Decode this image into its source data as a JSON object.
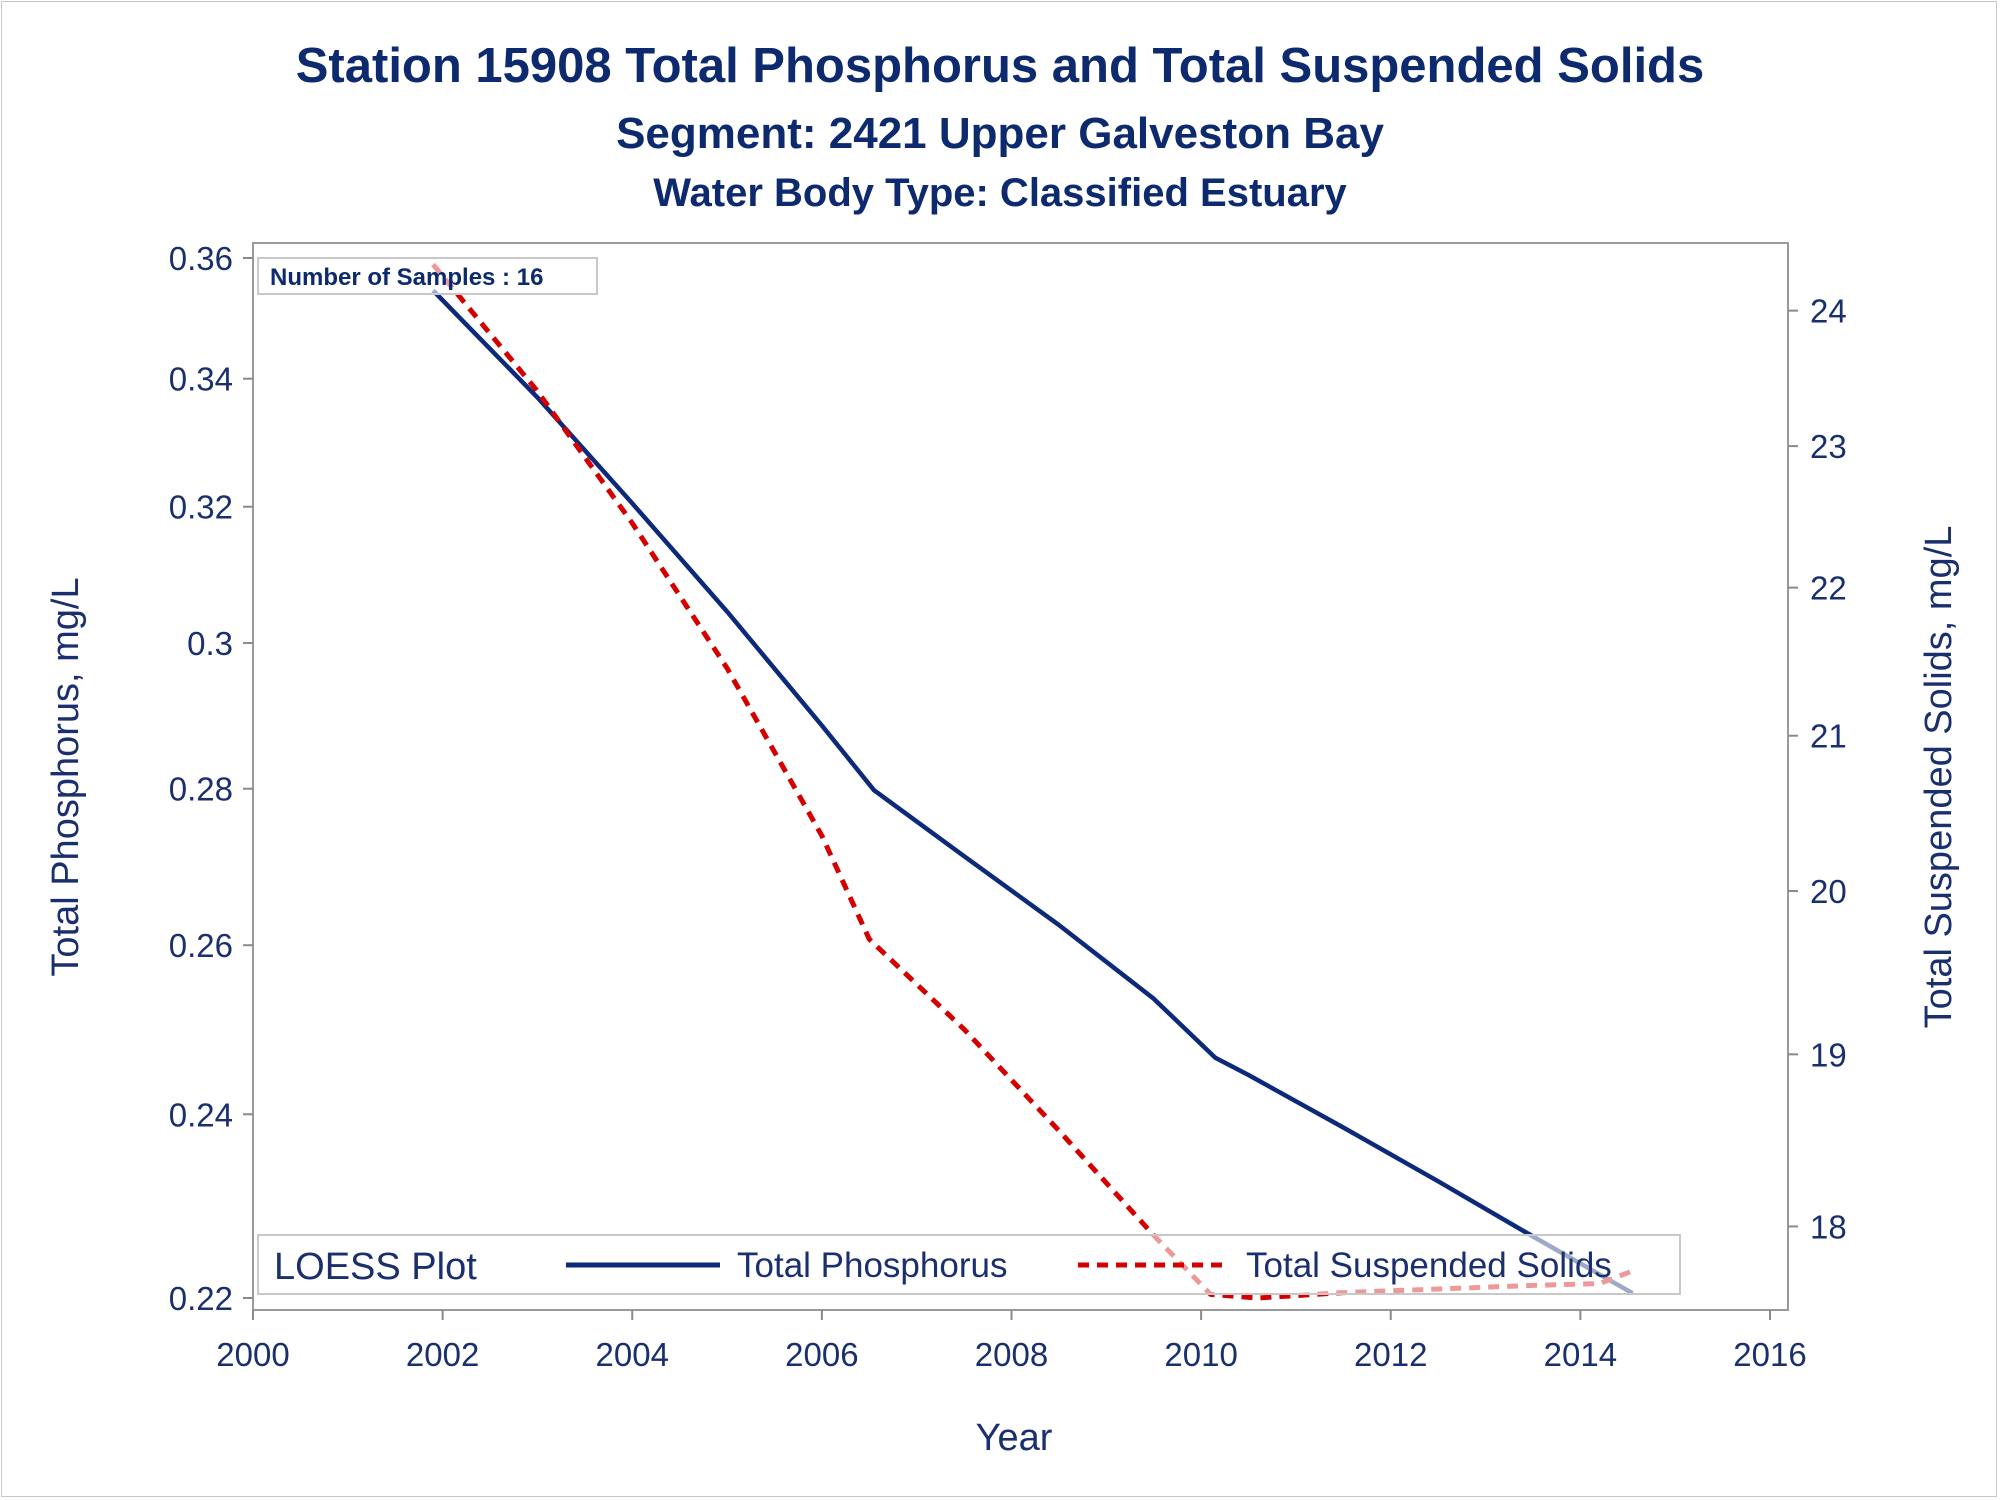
{
  "chart_data": {
    "type": "line",
    "title": "Station 15908  Total Phosphorus and Total Suspended Solids",
    "subtitle": "Segment: 2421  Upper Galveston Bay",
    "subtitle2": "Water Body Type: Classified Estuary",
    "xlabel": "Year",
    "ylabel": "Total Phosphorus, mg/L",
    "y2label": "Total Suspended Solids, mg/L",
    "xlim": [
      2000,
      2016
    ],
    "ylim": [
      0.22,
      0.36
    ],
    "y2lim": [
      17.6,
      24.4
    ],
    "y_scale": "log",
    "y2_scale": "log",
    "x_ticks": [
      "2000",
      "2002",
      "2004",
      "2006",
      "2008",
      "2010",
      "2012",
      "2014",
      "2016"
    ],
    "y_ticks": [
      "0.22",
      "0.24",
      "0.26",
      "0.28",
      "0.3",
      "0.32",
      "0.34",
      "0.36"
    ],
    "y2_ticks": [
      "18",
      "19",
      "20",
      "21",
      "22",
      "23",
      "24"
    ],
    "inset_text": "Number of Samples : 16",
    "legend": {
      "title": "LOESS Plot",
      "position": "bottom-inside",
      "entries": [
        "Total Phosphorus",
        "Total Suspended Solids"
      ]
    },
    "series": [
      {
        "name": "Total Phosphorus",
        "axis": "left",
        "style": "solid",
        "color": "#0d2a7a",
        "x": [
          2001.9,
          2003.0,
          2004.0,
          2005.0,
          2006.0,
          2006.55,
          2007.5,
          2008.5,
          2009.5,
          2010.15,
          2010.5,
          2011.5,
          2012.5,
          2013.5,
          2014.55
        ],
        "y": [
          0.3545,
          0.337,
          0.3205,
          0.3045,
          0.2885,
          0.2798,
          0.2712,
          0.2625,
          0.2535,
          0.2465,
          0.2445,
          0.2385,
          0.2325,
          0.2265,
          0.2205
        ]
      },
      {
        "name": "Total Suspended Solids",
        "axis": "right",
        "style": "dashed",
        "color": "#d40000",
        "x": [
          2001.9,
          2003.0,
          2004.0,
          2005.0,
          2006.0,
          2006.5,
          2007.5,
          2008.5,
          2009.5,
          2010.1,
          2010.6,
          2011.5,
          2012.5,
          2013.5,
          2014.2,
          2014.55
        ],
        "y": [
          24.35,
          23.4,
          22.45,
          21.45,
          20.35,
          19.7,
          19.15,
          18.55,
          17.95,
          17.62,
          17.6,
          17.63,
          17.65,
          17.67,
          17.68,
          17.75
        ]
      }
    ]
  }
}
